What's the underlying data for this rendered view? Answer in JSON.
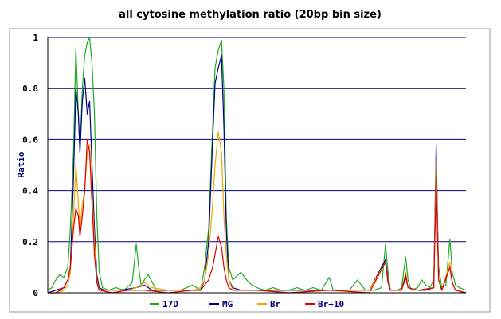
{
  "chart_data": {
    "type": "line",
    "title": "all cytosine methylation ratio (20bp bin size)",
    "xlabel": "",
    "ylabel": "Ratio",
    "xlim": [
      0,
      520
    ],
    "ylim": [
      0,
      1
    ],
    "y_ticks": [
      "0",
      "0.2",
      "0.4",
      "0.6",
      "0.8",
      "1"
    ],
    "grid": true,
    "legend_position": "bottom",
    "series": [
      {
        "name": "17D",
        "color": "#22aa22",
        "points": [
          [
            0,
            0.01
          ],
          [
            5,
            0.02
          ],
          [
            10,
            0.05
          ],
          [
            15,
            0.07
          ],
          [
            20,
            0.06
          ],
          [
            25,
            0.1
          ],
          [
            28,
            0.25
          ],
          [
            32,
            0.55
          ],
          [
            35,
            0.96
          ],
          [
            38,
            0.7
          ],
          [
            40,
            0.55
          ],
          [
            43,
            0.8
          ],
          [
            46,
            0.93
          ],
          [
            49,
            0.98
          ],
          [
            52,
            1.0
          ],
          [
            55,
            0.9
          ],
          [
            58,
            0.7
          ],
          [
            61,
            0.3
          ],
          [
            64,
            0.08
          ],
          [
            68,
            0.02
          ],
          [
            75,
            0.01
          ],
          [
            85,
            0.02
          ],
          [
            95,
            0.01
          ],
          [
            105,
            0.04
          ],
          [
            110,
            0.19
          ],
          [
            113,
            0.1
          ],
          [
            116,
            0.03
          ],
          [
            120,
            0.05
          ],
          [
            125,
            0.07
          ],
          [
            130,
            0.04
          ],
          [
            135,
            0.01
          ],
          [
            150,
            0.01
          ],
          [
            165,
            0.01
          ],
          [
            180,
            0.03
          ],
          [
            190,
            0.01
          ],
          [
            195,
            0.1
          ],
          [
            200,
            0.25
          ],
          [
            205,
            0.65
          ],
          [
            208,
            0.88
          ],
          [
            212,
            0.95
          ],
          [
            216,
            0.99
          ],
          [
            219,
            0.8
          ],
          [
            222,
            0.3
          ],
          [
            225,
            0.1
          ],
          [
            230,
            0.05
          ],
          [
            240,
            0.08
          ],
          [
            250,
            0.04
          ],
          [
            260,
            0.02
          ],
          [
            270,
            0.01
          ],
          [
            280,
            0.02
          ],
          [
            290,
            0.01
          ],
          [
            300,
            0.01
          ],
          [
            310,
            0.02
          ],
          [
            320,
            0.01
          ],
          [
            330,
            0.02
          ],
          [
            340,
            0.01
          ],
          [
            350,
            0.06
          ],
          [
            355,
            0.01
          ],
          [
            365,
            0.01
          ],
          [
            375,
            0.01
          ],
          [
            385,
            0.05
          ],
          [
            395,
            0.01
          ],
          [
            405,
            0.01
          ],
          [
            415,
            0.02
          ],
          [
            420,
            0.19
          ],
          [
            423,
            0.08
          ],
          [
            426,
            0.01
          ],
          [
            435,
            0.01
          ],
          [
            440,
            0.02
          ],
          [
            445,
            0.14
          ],
          [
            448,
            0.05
          ],
          [
            452,
            0.01
          ],
          [
            460,
            0.02
          ],
          [
            465,
            0.05
          ],
          [
            470,
            0.03
          ],
          [
            475,
            0.02
          ],
          [
            480,
            0.05
          ],
          [
            483,
            0.46
          ],
          [
            486,
            0.1
          ],
          [
            490,
            0.02
          ],
          [
            495,
            0.03
          ],
          [
            500,
            0.21
          ],
          [
            503,
            0.08
          ],
          [
            507,
            0.03
          ],
          [
            512,
            0.02
          ],
          [
            520,
            0.01
          ]
        ]
      },
      {
        "name": "MG",
        "color": "#000088",
        "points": [
          [
            0,
            0.0
          ],
          [
            10,
            0.01
          ],
          [
            20,
            0.02
          ],
          [
            25,
            0.05
          ],
          [
            28,
            0.1
          ],
          [
            32,
            0.45
          ],
          [
            35,
            0.8
          ],
          [
            38,
            0.7
          ],
          [
            40,
            0.55
          ],
          [
            43,
            0.75
          ],
          [
            46,
            0.84
          ],
          [
            49,
            0.7
          ],
          [
            52,
            0.75
          ],
          [
            55,
            0.5
          ],
          [
            58,
            0.25
          ],
          [
            61,
            0.07
          ],
          [
            64,
            0.02
          ],
          [
            70,
            0.01
          ],
          [
            90,
            0.01
          ],
          [
            110,
            0.02
          ],
          [
            120,
            0.03
          ],
          [
            130,
            0.01
          ],
          [
            150,
            0.01
          ],
          [
            180,
            0.01
          ],
          [
            190,
            0.01
          ],
          [
            195,
            0.05
          ],
          [
            200,
            0.2
          ],
          [
            205,
            0.6
          ],
          [
            208,
            0.82
          ],
          [
            212,
            0.88
          ],
          [
            216,
            0.93
          ],
          [
            219,
            0.65
          ],
          [
            222,
            0.25
          ],
          [
            225,
            0.05
          ],
          [
            230,
            0.02
          ],
          [
            240,
            0.01
          ],
          [
            260,
            0.01
          ],
          [
            300,
            0.01
          ],
          [
            350,
            0.01
          ],
          [
            400,
            0.01
          ],
          [
            420,
            0.13
          ],
          [
            423,
            0.05
          ],
          [
            426,
            0.01
          ],
          [
            440,
            0.01
          ],
          [
            445,
            0.06
          ],
          [
            448,
            0.02
          ],
          [
            460,
            0.01
          ],
          [
            470,
            0.01
          ],
          [
            480,
            0.02
          ],
          [
            483,
            0.58
          ],
          [
            486,
            0.05
          ],
          [
            490,
            0.01
          ],
          [
            500,
            0.1
          ],
          [
            503,
            0.04
          ],
          [
            507,
            0.01
          ],
          [
            520,
            0.0
          ]
        ]
      },
      {
        "name": "Br",
        "color": "#f0a800",
        "points": [
          [
            0,
            0.0
          ],
          [
            10,
            0.0
          ],
          [
            20,
            0.01
          ],
          [
            25,
            0.03
          ],
          [
            28,
            0.08
          ],
          [
            32,
            0.3
          ],
          [
            35,
            0.5
          ],
          [
            38,
            0.35
          ],
          [
            40,
            0.25
          ],
          [
            43,
            0.35
          ],
          [
            46,
            0.4
          ],
          [
            49,
            0.55
          ],
          [
            52,
            0.58
          ],
          [
            55,
            0.4
          ],
          [
            58,
            0.2
          ],
          [
            61,
            0.05
          ],
          [
            64,
            0.01
          ],
          [
            80,
            0.01
          ],
          [
            100,
            0.01
          ],
          [
            110,
            0.02
          ],
          [
            120,
            0.04
          ],
          [
            130,
            0.02
          ],
          [
            150,
            0.01
          ],
          [
            180,
            0.01
          ],
          [
            190,
            0.02
          ],
          [
            195,
            0.05
          ],
          [
            200,
            0.15
          ],
          [
            205,
            0.35
          ],
          [
            208,
            0.5
          ],
          [
            212,
            0.63
          ],
          [
            216,
            0.55
          ],
          [
            219,
            0.3
          ],
          [
            222,
            0.15
          ],
          [
            225,
            0.05
          ],
          [
            230,
            0.01
          ],
          [
            260,
            0.01
          ],
          [
            300,
            0.0
          ],
          [
            350,
            0.01
          ],
          [
            400,
            0.01
          ],
          [
            420,
            0.12
          ],
          [
            423,
            0.04
          ],
          [
            426,
            0.01
          ],
          [
            440,
            0.01
          ],
          [
            445,
            0.08
          ],
          [
            448,
            0.02
          ],
          [
            460,
            0.01
          ],
          [
            480,
            0.02
          ],
          [
            483,
            0.52
          ],
          [
            486,
            0.05
          ],
          [
            490,
            0.01
          ],
          [
            500,
            0.12
          ],
          [
            503,
            0.04
          ],
          [
            507,
            0.01
          ],
          [
            520,
            0.0
          ]
        ]
      },
      {
        "name": "Br+10",
        "color": "#dd0000",
        "points": [
          [
            0,
            0.0
          ],
          [
            10,
            0.0
          ],
          [
            20,
            0.02
          ],
          [
            25,
            0.05
          ],
          [
            28,
            0.1
          ],
          [
            32,
            0.25
          ],
          [
            35,
            0.33
          ],
          [
            38,
            0.3
          ],
          [
            40,
            0.22
          ],
          [
            43,
            0.3
          ],
          [
            46,
            0.4
          ],
          [
            49,
            0.6
          ],
          [
            52,
            0.55
          ],
          [
            55,
            0.35
          ],
          [
            58,
            0.15
          ],
          [
            61,
            0.04
          ],
          [
            64,
            0.01
          ],
          [
            80,
            0.0
          ],
          [
            100,
            0.01
          ],
          [
            120,
            0.01
          ],
          [
            150,
            0.0
          ],
          [
            180,
            0.01
          ],
          [
            190,
            0.01
          ],
          [
            195,
            0.03
          ],
          [
            200,
            0.05
          ],
          [
            205,
            0.1
          ],
          [
            208,
            0.15
          ],
          [
            212,
            0.22
          ],
          [
            216,
            0.18
          ],
          [
            219,
            0.1
          ],
          [
            222,
            0.05
          ],
          [
            225,
            0.02
          ],
          [
            230,
            0.01
          ],
          [
            260,
            0.01
          ],
          [
            300,
            0.0
          ],
          [
            350,
            0.01
          ],
          [
            400,
            0.0
          ],
          [
            420,
            0.12
          ],
          [
            423,
            0.04
          ],
          [
            426,
            0.01
          ],
          [
            440,
            0.01
          ],
          [
            445,
            0.07
          ],
          [
            448,
            0.02
          ],
          [
            460,
            0.01
          ],
          [
            480,
            0.02
          ],
          [
            483,
            0.45
          ],
          [
            486,
            0.05
          ],
          [
            490,
            0.01
          ],
          [
            500,
            0.1
          ],
          [
            503,
            0.04
          ],
          [
            507,
            0.01
          ],
          [
            520,
            0.0
          ]
        ]
      }
    ]
  }
}
